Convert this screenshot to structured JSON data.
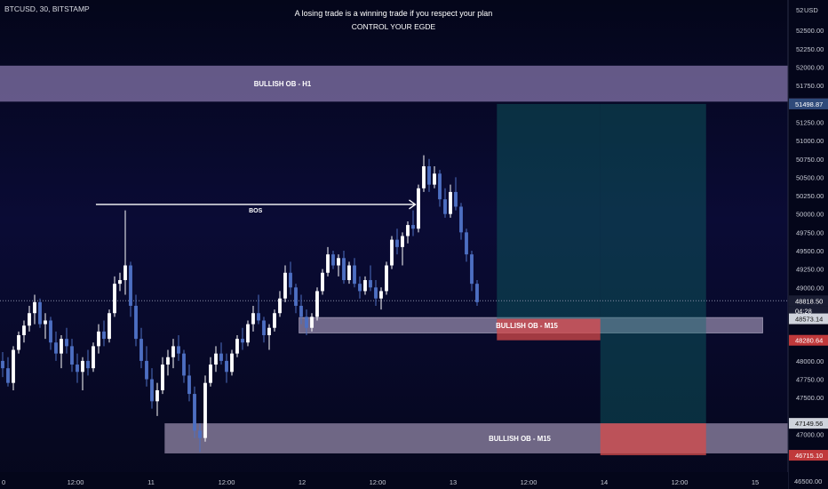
{
  "chart_data": {
    "type": "candlestick",
    "symbol_line": "BTCUSD, 30, BITSTAMP",
    "title": "A losing trade is a winning trade if you respect your plan",
    "subtitle": "CONTROL YOUR EGDE",
    "currency": "USD",
    "ylim": [
      46500,
      52650
    ],
    "y_ticks": [
      {
        "value": 52500,
        "label": "52500.00"
      },
      {
        "value": 52250,
        "label": "52250.00"
      },
      {
        "value": 52000,
        "label": "52000.00"
      },
      {
        "value": 51750,
        "label": "51750.00"
      },
      {
        "value": 51250,
        "label": "51250.00"
      },
      {
        "value": 51000,
        "label": "51000.00"
      },
      {
        "value": 50750,
        "label": "50750.00"
      },
      {
        "value": 50500,
        "label": "50500.00"
      },
      {
        "value": 50250,
        "label": "50250.00"
      },
      {
        "value": 50000,
        "label": "50000.00"
      },
      {
        "value": 49750,
        "label": "49750.00"
      },
      {
        "value": 49500,
        "label": "49500.00"
      },
      {
        "value": 49250,
        "label": "49250.00"
      },
      {
        "value": 49000,
        "label": "49000.00"
      },
      {
        "value": 48000,
        "label": "48000.00"
      },
      {
        "value": 47750,
        "label": "47750.00"
      },
      {
        "value": 47500,
        "label": "47500.00"
      },
      {
        "value": 47000,
        "label": "47000.00"
      }
    ],
    "y_top_label": "52",
    "y_bottom_label": "46500.00",
    "x_ticks": [
      {
        "slot": 0,
        "label": "0"
      },
      {
        "slot": 1,
        "label": "12:00"
      },
      {
        "slot": 2,
        "label": "11"
      },
      {
        "slot": 3,
        "label": "12:00"
      },
      {
        "slot": 4,
        "label": "12"
      },
      {
        "slot": 5,
        "label": "12:00"
      },
      {
        "slot": 6,
        "label": "13"
      },
      {
        "slot": 7,
        "label": "12:00"
      },
      {
        "slot": 8,
        "label": "14"
      },
      {
        "slot": 9,
        "label": "12:00"
      },
      {
        "slot": 10,
        "label": "15"
      }
    ],
    "price_labels": [
      {
        "value": 51501.25,
        "label": "51501.25",
        "color": "#5b4a7a"
      },
      {
        "value": 51498.87,
        "label": "51498.87",
        "color": "#2f4a7a"
      },
      {
        "value": 48818.5,
        "label": "48818.50",
        "color": "#1a1d33"
      },
      {
        "value": 48573.14,
        "label": "48573.14",
        "color": "#cfd3dc"
      },
      {
        "value": 48280.64,
        "label": "48280.64",
        "color": "#c0393b"
      },
      {
        "value": 47149.56,
        "label": "47149.56",
        "color": "#cfd3dc"
      },
      {
        "value": 46715.1,
        "label": "46715.10",
        "color": "#c0393b"
      }
    ],
    "countdown": "04:28",
    "zones": [
      {
        "label": "BULLISH OB - H1",
        "top": 52020,
        "bottom": 51530,
        "x_start": 0,
        "x_end": 10.45,
        "color": "#b39ddb"
      },
      {
        "label": "BULLISH OB - M15",
        "top": 48590,
        "bottom": 48380,
        "x_start": 3.96,
        "x_end": 10.1,
        "color": "#c7b6d8"
      },
      {
        "label": "BULLISH OB - M15",
        "top": 47150,
        "bottom": 46740,
        "x_start": 2.18,
        "x_end": 10.45,
        "color": "#c7b6d8"
      }
    ],
    "positions": [
      {
        "entry": 48573.14,
        "target": 51498.87,
        "stop": 48280.64,
        "x_start": 6.58,
        "x_end": 7.95
      },
      {
        "entry": 47149.56,
        "target": 51498.87,
        "stop": 46715.1,
        "x_start": 7.95,
        "x_end": 9.35
      }
    ],
    "bos": {
      "label": "BOS",
      "price": 50130,
      "x_start": 1.27,
      "x_end": 5.5
    },
    "last_price": 48818.5,
    "candles": [
      [
        48000,
        48120,
        47780,
        47900
      ],
      [
        47900,
        48050,
        47650,
        47700
      ],
      [
        47700,
        48200,
        47600,
        48150
      ],
      [
        48150,
        48400,
        48100,
        48350
      ],
      [
        48350,
        48550,
        48250,
        48480
      ],
      [
        48480,
        48750,
        48400,
        48650
      ],
      [
        48650,
        48900,
        48500,
        48800
      ],
      [
        48800,
        48850,
        48450,
        48500
      ],
      [
        48500,
        48650,
        48300,
        48550
      ],
      [
        48550,
        48600,
        48150,
        48250
      ],
      [
        48250,
        48400,
        48000,
        48100
      ],
      [
        48100,
        48350,
        47900,
        48300
      ],
      [
        48300,
        48450,
        48100,
        48200
      ],
      [
        48200,
        48300,
        47850,
        47950
      ],
      [
        47950,
        48100,
        47700,
        47850
      ],
      [
        47850,
        48050,
        47600,
        48000
      ],
      [
        48000,
        48150,
        47800,
        47900
      ],
      [
        47900,
        48250,
        47850,
        48200
      ],
      [
        48200,
        48500,
        48100,
        48400
      ],
      [
        48400,
        48550,
        48200,
        48300
      ],
      [
        48300,
        48700,
        48250,
        48650
      ],
      [
        48650,
        49150,
        48600,
        49050
      ],
      [
        49050,
        49200,
        48950,
        49100
      ],
      [
        49100,
        50050,
        48900,
        49300
      ],
      [
        49300,
        49350,
        48600,
        48750
      ],
      [
        48750,
        48900,
        48200,
        48300
      ],
      [
        48300,
        48450,
        47900,
        48000
      ],
      [
        48000,
        48200,
        47650,
        47750
      ],
      [
        47750,
        47900,
        47350,
        47450
      ],
      [
        47450,
        47700,
        47250,
        47600
      ],
      [
        47600,
        48050,
        47550,
        47950
      ],
      [
        47950,
        48150,
        47800,
        48050
      ],
      [
        48050,
        48300,
        47900,
        48200
      ],
      [
        48200,
        48350,
        48000,
        48100
      ],
      [
        48100,
        48150,
        47700,
        47800
      ],
      [
        47800,
        47950,
        47450,
        47550
      ],
      [
        47550,
        47650,
        46950,
        47050
      ],
      [
        47050,
        47150,
        46760,
        46950
      ],
      [
        46950,
        47800,
        46900,
        47700
      ],
      [
        47700,
        48050,
        47650,
        47950
      ],
      [
        47950,
        48200,
        47850,
        48100
      ],
      [
        48100,
        48250,
        47950,
        48000
      ],
      [
        48000,
        48100,
        47700,
        47850
      ],
      [
        47850,
        48150,
        47800,
        48100
      ],
      [
        48100,
        48350,
        48050,
        48300
      ],
      [
        48300,
        48450,
        48150,
        48250
      ],
      [
        48250,
        48550,
        48200,
        48500
      ],
      [
        48500,
        48750,
        48400,
        48650
      ],
      [
        48650,
        48900,
        48500,
        48550
      ],
      [
        48550,
        48600,
        48250,
        48350
      ],
      [
        48350,
        48500,
        48150,
        48450
      ],
      [
        48450,
        48700,
        48400,
        48650
      ],
      [
        48650,
        48950,
        48600,
        48850
      ],
      [
        48850,
        49300,
        48800,
        49200
      ],
      [
        49200,
        49350,
        48900,
        49000
      ],
      [
        49000,
        49050,
        48650,
        48750
      ],
      [
        48750,
        48900,
        48500,
        48600
      ],
      [
        48600,
        48700,
        48350,
        48450
      ],
      [
        48450,
        48650,
        48400,
        48600
      ],
      [
        48600,
        49000,
        48550,
        48950
      ],
      [
        48950,
        49250,
        48900,
        49200
      ],
      [
        49200,
        49550,
        49150,
        49450
      ],
      [
        49450,
        49500,
        49250,
        49300
      ],
      [
        49300,
        49450,
        49150,
        49400
      ],
      [
        49400,
        49500,
        49050,
        49100
      ],
      [
        49100,
        49350,
        49050,
        49300
      ],
      [
        49300,
        49400,
        49000,
        49050
      ],
      [
        49050,
        49150,
        48850,
        48950
      ],
      [
        48950,
        49150,
        48900,
        49100
      ],
      [
        49100,
        49300,
        48950,
        49000
      ],
      [
        49000,
        49100,
        48750,
        48850
      ],
      [
        48850,
        49000,
        48700,
        48950
      ],
      [
        48950,
        49350,
        48900,
        49300
      ],
      [
        49300,
        49700,
        49250,
        49650
      ],
      [
        49650,
        49800,
        49450,
        49550
      ],
      [
        49550,
        49750,
        49300,
        49700
      ],
      [
        49700,
        49900,
        49600,
        49850
      ],
      [
        49850,
        50050,
        49700,
        49800
      ],
      [
        49800,
        50400,
        49750,
        50350
      ],
      [
        50350,
        50800,
        50300,
        50650
      ],
      [
        50650,
        50750,
        50300,
        50400
      ],
      [
        50400,
        50650,
        50350,
        50550
      ],
      [
        50550,
        50600,
        50100,
        50200
      ],
      [
        50200,
        50350,
        49950,
        50000
      ],
      [
        50000,
        50400,
        49950,
        50300
      ],
      [
        50300,
        50500,
        50050,
        50100
      ],
      [
        50100,
        50150,
        49650,
        49750
      ],
      [
        49750,
        49800,
        49350,
        49450
      ],
      [
        49450,
        49500,
        48950,
        49050
      ],
      [
        49050,
        49100,
        48750,
        48800
      ]
    ]
  }
}
